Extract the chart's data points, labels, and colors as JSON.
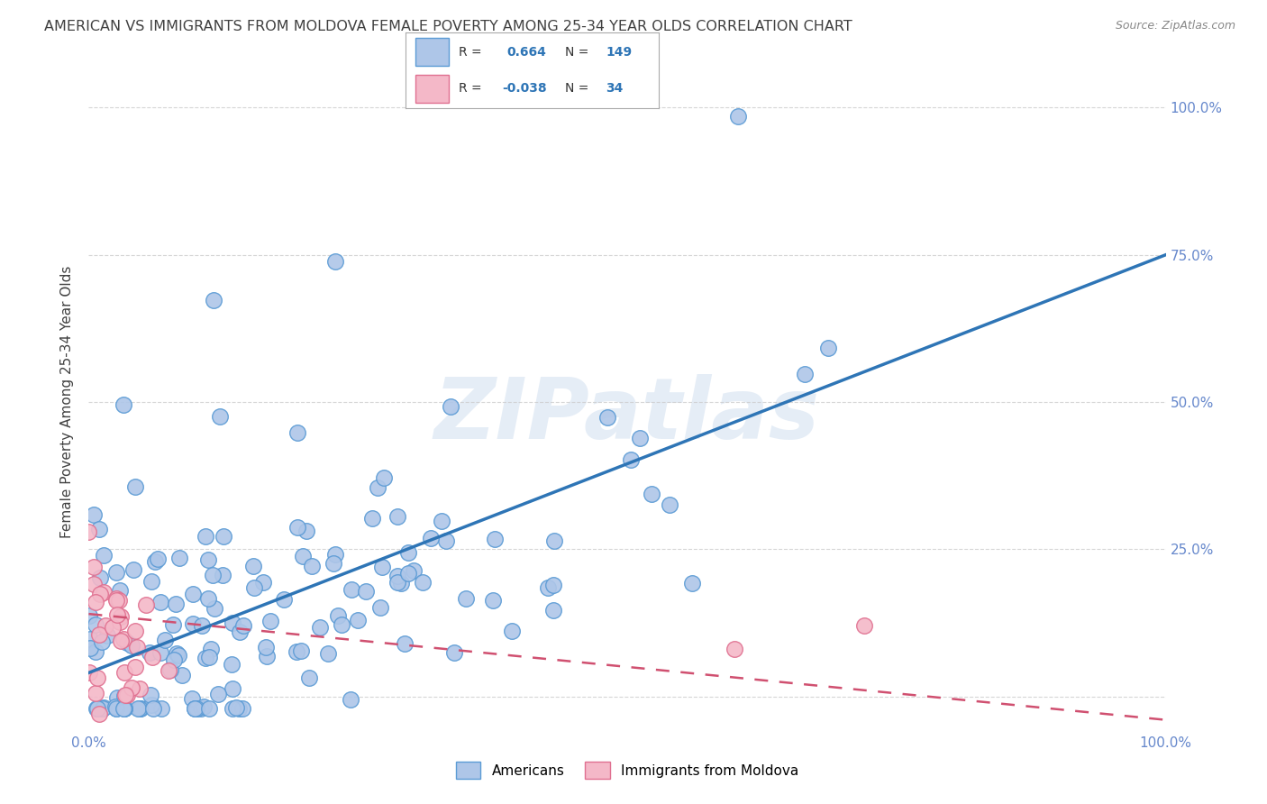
{
  "title": "AMERICAN VS IMMIGRANTS FROM MOLDOVA FEMALE POVERTY AMONG 25-34 YEAR OLDS CORRELATION CHART",
  "source": "Source: ZipAtlas.com",
  "ylabel": "Female Poverty Among 25-34 Year Olds",
  "r_american": 0.664,
  "n_american": 149,
  "r_moldova": -0.038,
  "n_moldova": 34,
  "watermark": "ZIPatlas",
  "american_color": "#aec6e8",
  "american_edge_color": "#5b9bd5",
  "american_line_color": "#2e75b6",
  "moldova_color": "#f4b8c8",
  "moldova_edge_color": "#e07090",
  "moldova_line_color": "#d05070",
  "title_color": "#404040",
  "source_color": "#888888",
  "ylabel_color": "#404040",
  "tick_color": "#6688cc",
  "grid_color": "#cccccc",
  "bg_color": "#ffffff",
  "legend_border_color": "#aaaaaa",
  "seed": 7
}
